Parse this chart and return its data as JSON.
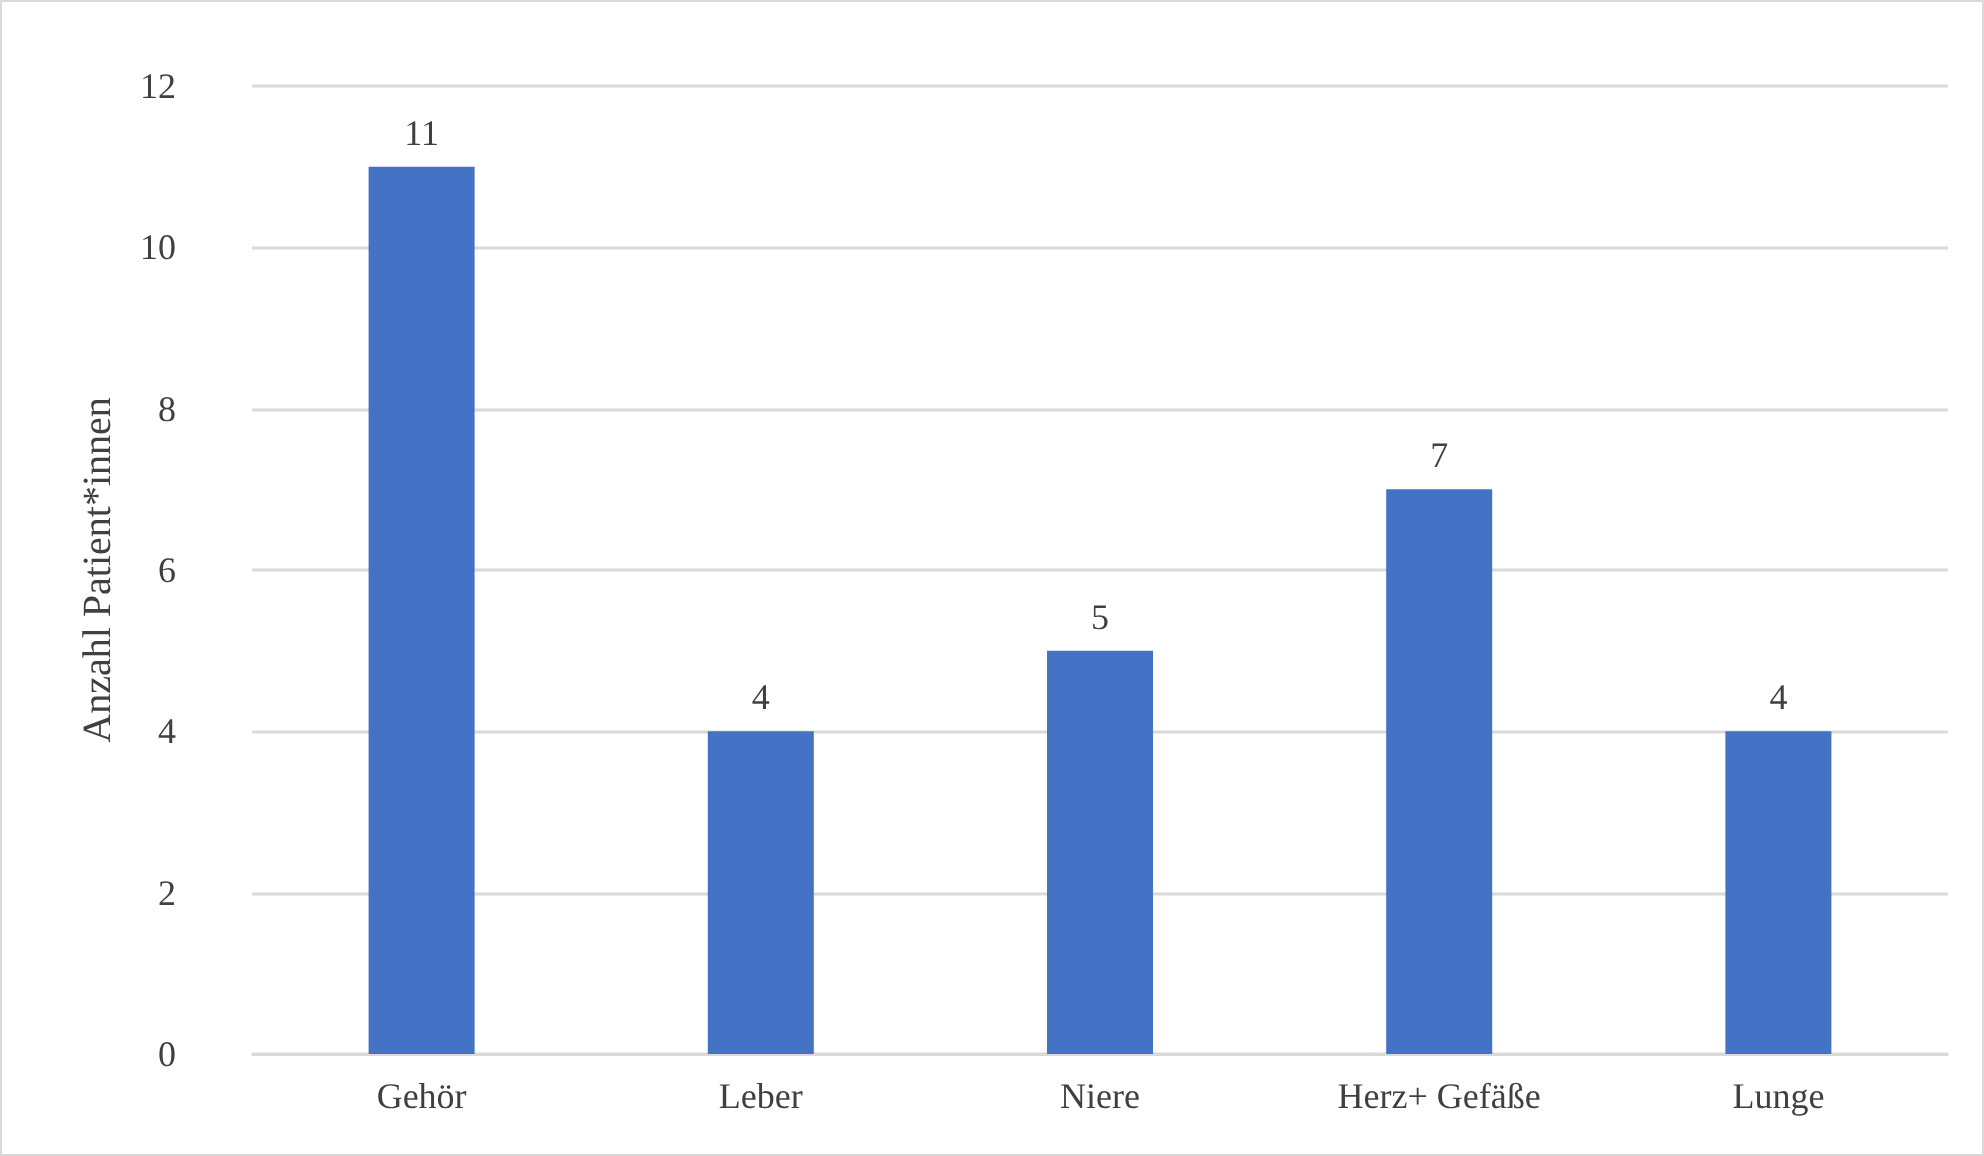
{
  "chart_data": {
    "type": "bar",
    "ylabel": "Anzahl Patient*innen",
    "categories": [
      "Gehör",
      "Leber",
      "Niere",
      "Herz+ Gefäße",
      "Lunge"
    ],
    "values": [
      11,
      4,
      5,
      7,
      4
    ],
    "color": "#4472c4",
    "ylim": [
      0,
      12
    ],
    "yticks": [
      0,
      2,
      4,
      6,
      8,
      10,
      12
    ],
    "grid": "y",
    "data_labels": true
  }
}
